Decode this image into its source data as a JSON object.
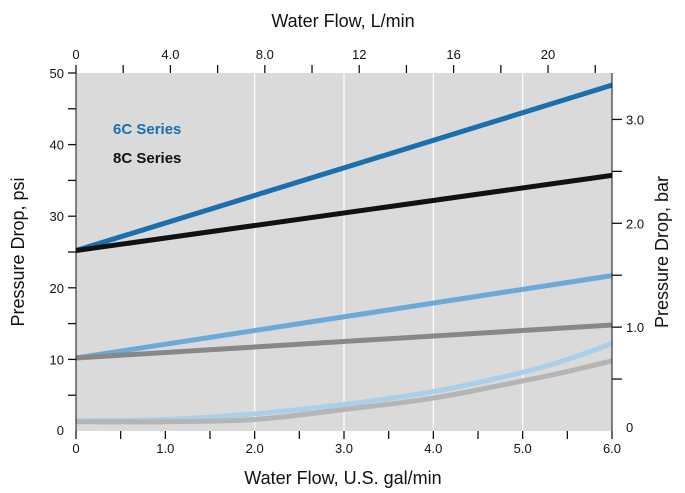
{
  "chart_data": {
    "type": "line",
    "title": "",
    "xlabel": "Water Flow, U.S. gal/min",
    "x2label": "Water Flow, L/min",
    "ylabel": "Pressure Drop, psi",
    "y2label": "Pressure Drop, bar",
    "xlim": [
      0,
      6.0
    ],
    "ylim": [
      0,
      50
    ],
    "x2lim": [
      0,
      22.71
    ],
    "y2lim": [
      0,
      3.447
    ],
    "x_ticks": [
      {
        "v": 0,
        "label": "0"
      },
      {
        "v": 0.5,
        "label": ""
      },
      {
        "v": 1.0,
        "label": "1.0"
      },
      {
        "v": 1.5,
        "label": ""
      },
      {
        "v": 2.0,
        "label": "2.0"
      },
      {
        "v": 2.5,
        "label": ""
      },
      {
        "v": 3.0,
        "label": "3.0"
      },
      {
        "v": 3.5,
        "label": ""
      },
      {
        "v": 4.0,
        "label": "4.0"
      },
      {
        "v": 4.5,
        "label": ""
      },
      {
        "v": 5.0,
        "label": "5.0"
      },
      {
        "v": 5.5,
        "label": ""
      },
      {
        "v": 6.0,
        "label": "6.0"
      }
    ],
    "y_ticks": [
      {
        "v": 0,
        "label": "0"
      },
      {
        "v": 5,
        "label": ""
      },
      {
        "v": 10,
        "label": "10"
      },
      {
        "v": 15,
        "label": ""
      },
      {
        "v": 20,
        "label": "20"
      },
      {
        "v": 25,
        "label": ""
      },
      {
        "v": 30,
        "label": "30"
      },
      {
        "v": 35,
        "label": ""
      },
      {
        "v": 40,
        "label": "40"
      },
      {
        "v": 45,
        "label": ""
      },
      {
        "v": 50,
        "label": "50"
      }
    ],
    "x2_ticks": [
      {
        "v": 0,
        "label": "0"
      },
      {
        "v": 2,
        "label": ""
      },
      {
        "v": 4,
        "label": "4.0"
      },
      {
        "v": 6,
        "label": ""
      },
      {
        "v": 8,
        "label": "8.0"
      },
      {
        "v": 10,
        "label": ""
      },
      {
        "v": 12,
        "label": "12"
      },
      {
        "v": 14,
        "label": ""
      },
      {
        "v": 16,
        "label": "16"
      },
      {
        "v": 18,
        "label": ""
      },
      {
        "v": 20,
        "label": "20"
      },
      {
        "v": 22,
        "label": ""
      }
    ],
    "y2_ticks": [
      {
        "v": 0,
        "label": "0"
      },
      {
        "v": 0.5,
        "label": ""
      },
      {
        "v": 1.0,
        "label": "1.0"
      },
      {
        "v": 1.5,
        "label": ""
      },
      {
        "v": 2.0,
        "label": "2.0"
      },
      {
        "v": 2.5,
        "label": ""
      },
      {
        "v": 3.0,
        "label": "3.0"
      }
    ],
    "vertical_gridlines_at": [
      2.0,
      3.0,
      4.0,
      5.0
    ],
    "legend": [
      {
        "label": "6C Series",
        "color": "#1a6faf"
      },
      {
        "label": "8C Series",
        "color": "#111111"
      }
    ],
    "legend_position": "top-left",
    "series": [
      {
        "color": "#1a6faf",
        "x": [
          0,
          6.0
        ],
        "y": [
          25.2,
          48.3
        ]
      },
      {
        "color": "#111111",
        "x": [
          0,
          6.0
        ],
        "y": [
          25.2,
          35.7
        ]
      },
      {
        "color": "#6aaad6",
        "x": [
          0,
          6.0
        ],
        "y": [
          10.2,
          21.7
        ]
      },
      {
        "color": "#888888",
        "x": [
          0,
          6.0
        ],
        "y": [
          10.2,
          14.8
        ]
      },
      {
        "color": "#a9cfe9",
        "x": [
          0,
          1.0,
          2.0,
          3.0,
          4.0,
          5.0,
          5.5,
          6.0
        ],
        "y": [
          1.4,
          1.6,
          2.4,
          3.7,
          5.5,
          8.2,
          10.0,
          12.2
        ]
      },
      {
        "color": "#b5b5b5",
        "x": [
          0,
          1.0,
          2.0,
          3.0,
          4.0,
          5.0,
          5.5,
          6.0
        ],
        "y": [
          1.3,
          1.3,
          1.6,
          3.0,
          4.6,
          7.0,
          8.3,
          9.8
        ]
      }
    ],
    "colors": {
      "plot_bg": "#dadada",
      "grid": "#ffffff"
    }
  }
}
